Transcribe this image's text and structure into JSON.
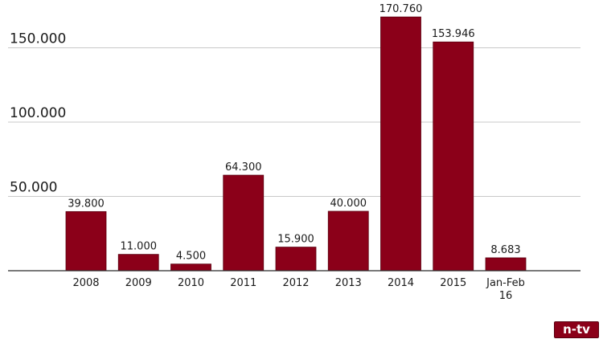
{
  "logo": {
    "text": "n-tv"
  },
  "chart_data": {
    "type": "bar",
    "title": "",
    "xlabel": "",
    "ylabel": "",
    "categories": [
      "2008",
      "2009",
      "2010",
      "2011",
      "2012",
      "2013",
      "2014",
      "2015",
      [
        "Jan-Feb",
        "16"
      ]
    ],
    "values": [
      39800,
      11000,
      4500,
      64300,
      15900,
      40000,
      170760,
      153946,
      8683
    ],
    "value_labels": [
      "39.800",
      "11.000",
      "4.500",
      "64.300",
      "15.900",
      "40.000",
      "170.760",
      "153.946",
      "8.683"
    ],
    "ylim": [
      0,
      180000
    ],
    "yticks": [
      50000,
      100000,
      150000
    ],
    "ytick_labels": [
      "50.000",
      "100.000",
      "150.000"
    ],
    "grid": true,
    "bar_color": "#8b0019",
    "legend": "none"
  }
}
